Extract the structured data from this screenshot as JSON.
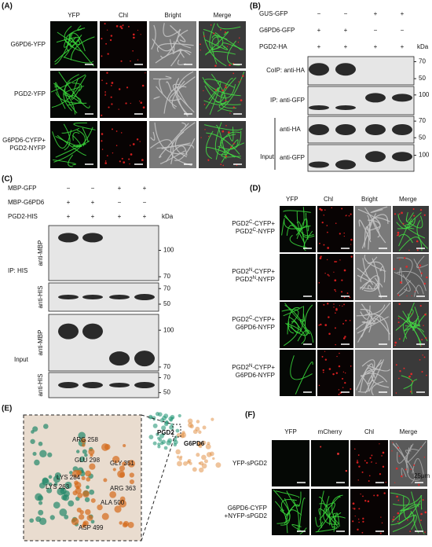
{
  "A": {
    "label": "(A)",
    "columns": [
      "YFP",
      "Chl",
      "Bright",
      "Merge"
    ],
    "rows": [
      [
        "G6PD6-YFP"
      ],
      [
        "PGD2-YFP"
      ],
      [
        "G6PD6-CYFP+",
        "PGD2-NYFP"
      ]
    ]
  },
  "B": {
    "label": "(B)",
    "conditions": [
      {
        "name": "GUS-GFP",
        "signs": [
          "−",
          "−",
          "+",
          "+"
        ]
      },
      {
        "name": "G6PD6-GFP",
        "signs": [
          "+",
          "+",
          "−",
          "−"
        ]
      },
      {
        "name": "PGD2-HA",
        "signs": [
          "+",
          "+",
          "+",
          "+"
        ]
      }
    ],
    "unit": "kDa",
    "blots": [
      {
        "label": "CoIP: anti-HA",
        "markers": [
          70,
          50
        ]
      },
      {
        "label": "IP: anti-GFP",
        "markers": [
          100
        ]
      },
      {
        "label": "anti-HA",
        "markers": [
          70,
          50
        ]
      },
      {
        "label": "anti-GFP",
        "markers": [
          100
        ]
      }
    ],
    "group": "Input"
  },
  "C": {
    "label": "(C)",
    "conditions": [
      {
        "name": "MBP-GFP",
        "signs": [
          "−",
          "−",
          "+",
          "+"
        ]
      },
      {
        "name": "MBP-G6PD6",
        "signs": [
          "+",
          "+",
          "−",
          "−"
        ]
      },
      {
        "name": "PGD2-HIS",
        "signs": [
          "+",
          "+",
          "+",
          "+"
        ]
      }
    ],
    "unit": "kDa",
    "blots": [
      {
        "label": "anti-MBP",
        "markers": [
          100,
          70
        ]
      },
      {
        "label": "anti-HIS",
        "markers": [
          70,
          50
        ]
      },
      {
        "label": "anti-MBP",
        "markers": [
          100,
          70
        ]
      },
      {
        "label": "anti-HIS",
        "markers": [
          70,
          50
        ]
      }
    ],
    "groups": [
      "IP: HIS",
      "Input"
    ]
  },
  "D": {
    "label": "(D)",
    "columns": [
      "YFP",
      "Chl",
      "Bright",
      "Merge"
    ],
    "rows": [
      [
        [
          "PGD2",
          "C",
          "-CYFP+"
        ],
        [
          "PGD2",
          "C",
          "-NYFP"
        ]
      ],
      [
        [
          "PGD2",
          "N",
          "-CYFP+"
        ],
        [
          "PGD2",
          "N",
          "-NYFP"
        ]
      ],
      [
        [
          "PGD2",
          "C",
          "-CYFP+"
        ],
        [
          "G6PD6-NYFP"
        ]
      ],
      [
        [
          "PGD2",
          "N",
          "-CYFP+"
        ],
        [
          "G6PD6-NYFP"
        ]
      ]
    ]
  },
  "E": {
    "label": "(E)",
    "proteins": [
      "PGD2",
      "G6PD6"
    ],
    "residues": [
      "ARG 258",
      "GLU 298",
      "GLY 351",
      "LYS 284",
      "LYS 263",
      "ARG 363",
      "ALA 500",
      "ASP 499"
    ]
  },
  "F": {
    "label": "(F)",
    "columns": [
      "YFP",
      "mCherry",
      "Chl",
      "Merge"
    ],
    "rows": [
      [
        "YFP-sPGD2"
      ],
      [
        "G6PD6-CYFP",
        "+NYFP-sPGD2"
      ]
    ],
    "scale_bar": "25μm"
  }
}
